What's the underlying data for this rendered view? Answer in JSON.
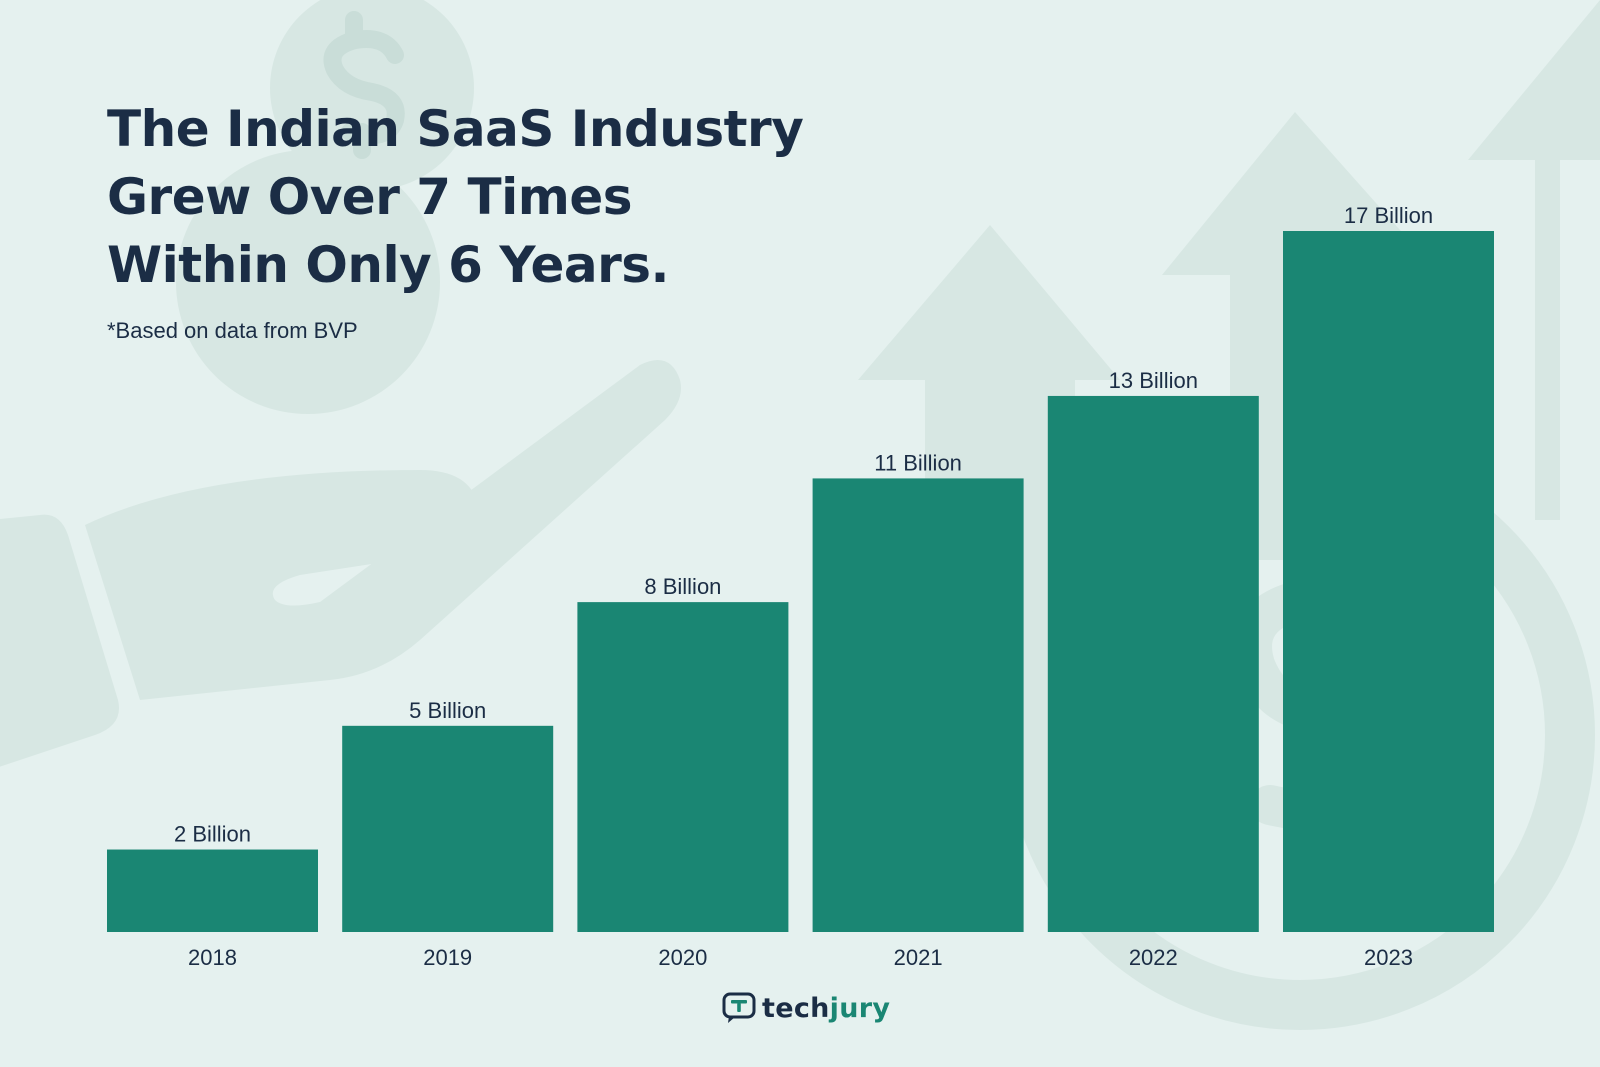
{
  "title_lines": [
    "The Indian SaaS Industry",
    "Grew Over 7 Times",
    "Within Only 6 Years."
  ],
  "subtitle": "*Based on data from BVP",
  "logo": {
    "part1": "tech",
    "part2": "jury",
    "icon": "chat-bubble-icon"
  },
  "colors": {
    "background": "#e5f1ef",
    "bar": "#1a8673",
    "text": "#1b2d45",
    "decor": "#d7e7e3"
  },
  "chart_data": {
    "type": "bar",
    "categories": [
      "2018",
      "2019",
      "2020",
      "2021",
      "2022",
      "2023"
    ],
    "values": [
      2,
      5,
      8,
      11,
      13,
      17
    ],
    "labels": [
      "2 Billion",
      "5 Billion",
      "8 Billion",
      "11 Billion",
      "13 Billion",
      "17 Billion"
    ],
    "ylim": [
      0,
      17
    ],
    "grid": false
  }
}
